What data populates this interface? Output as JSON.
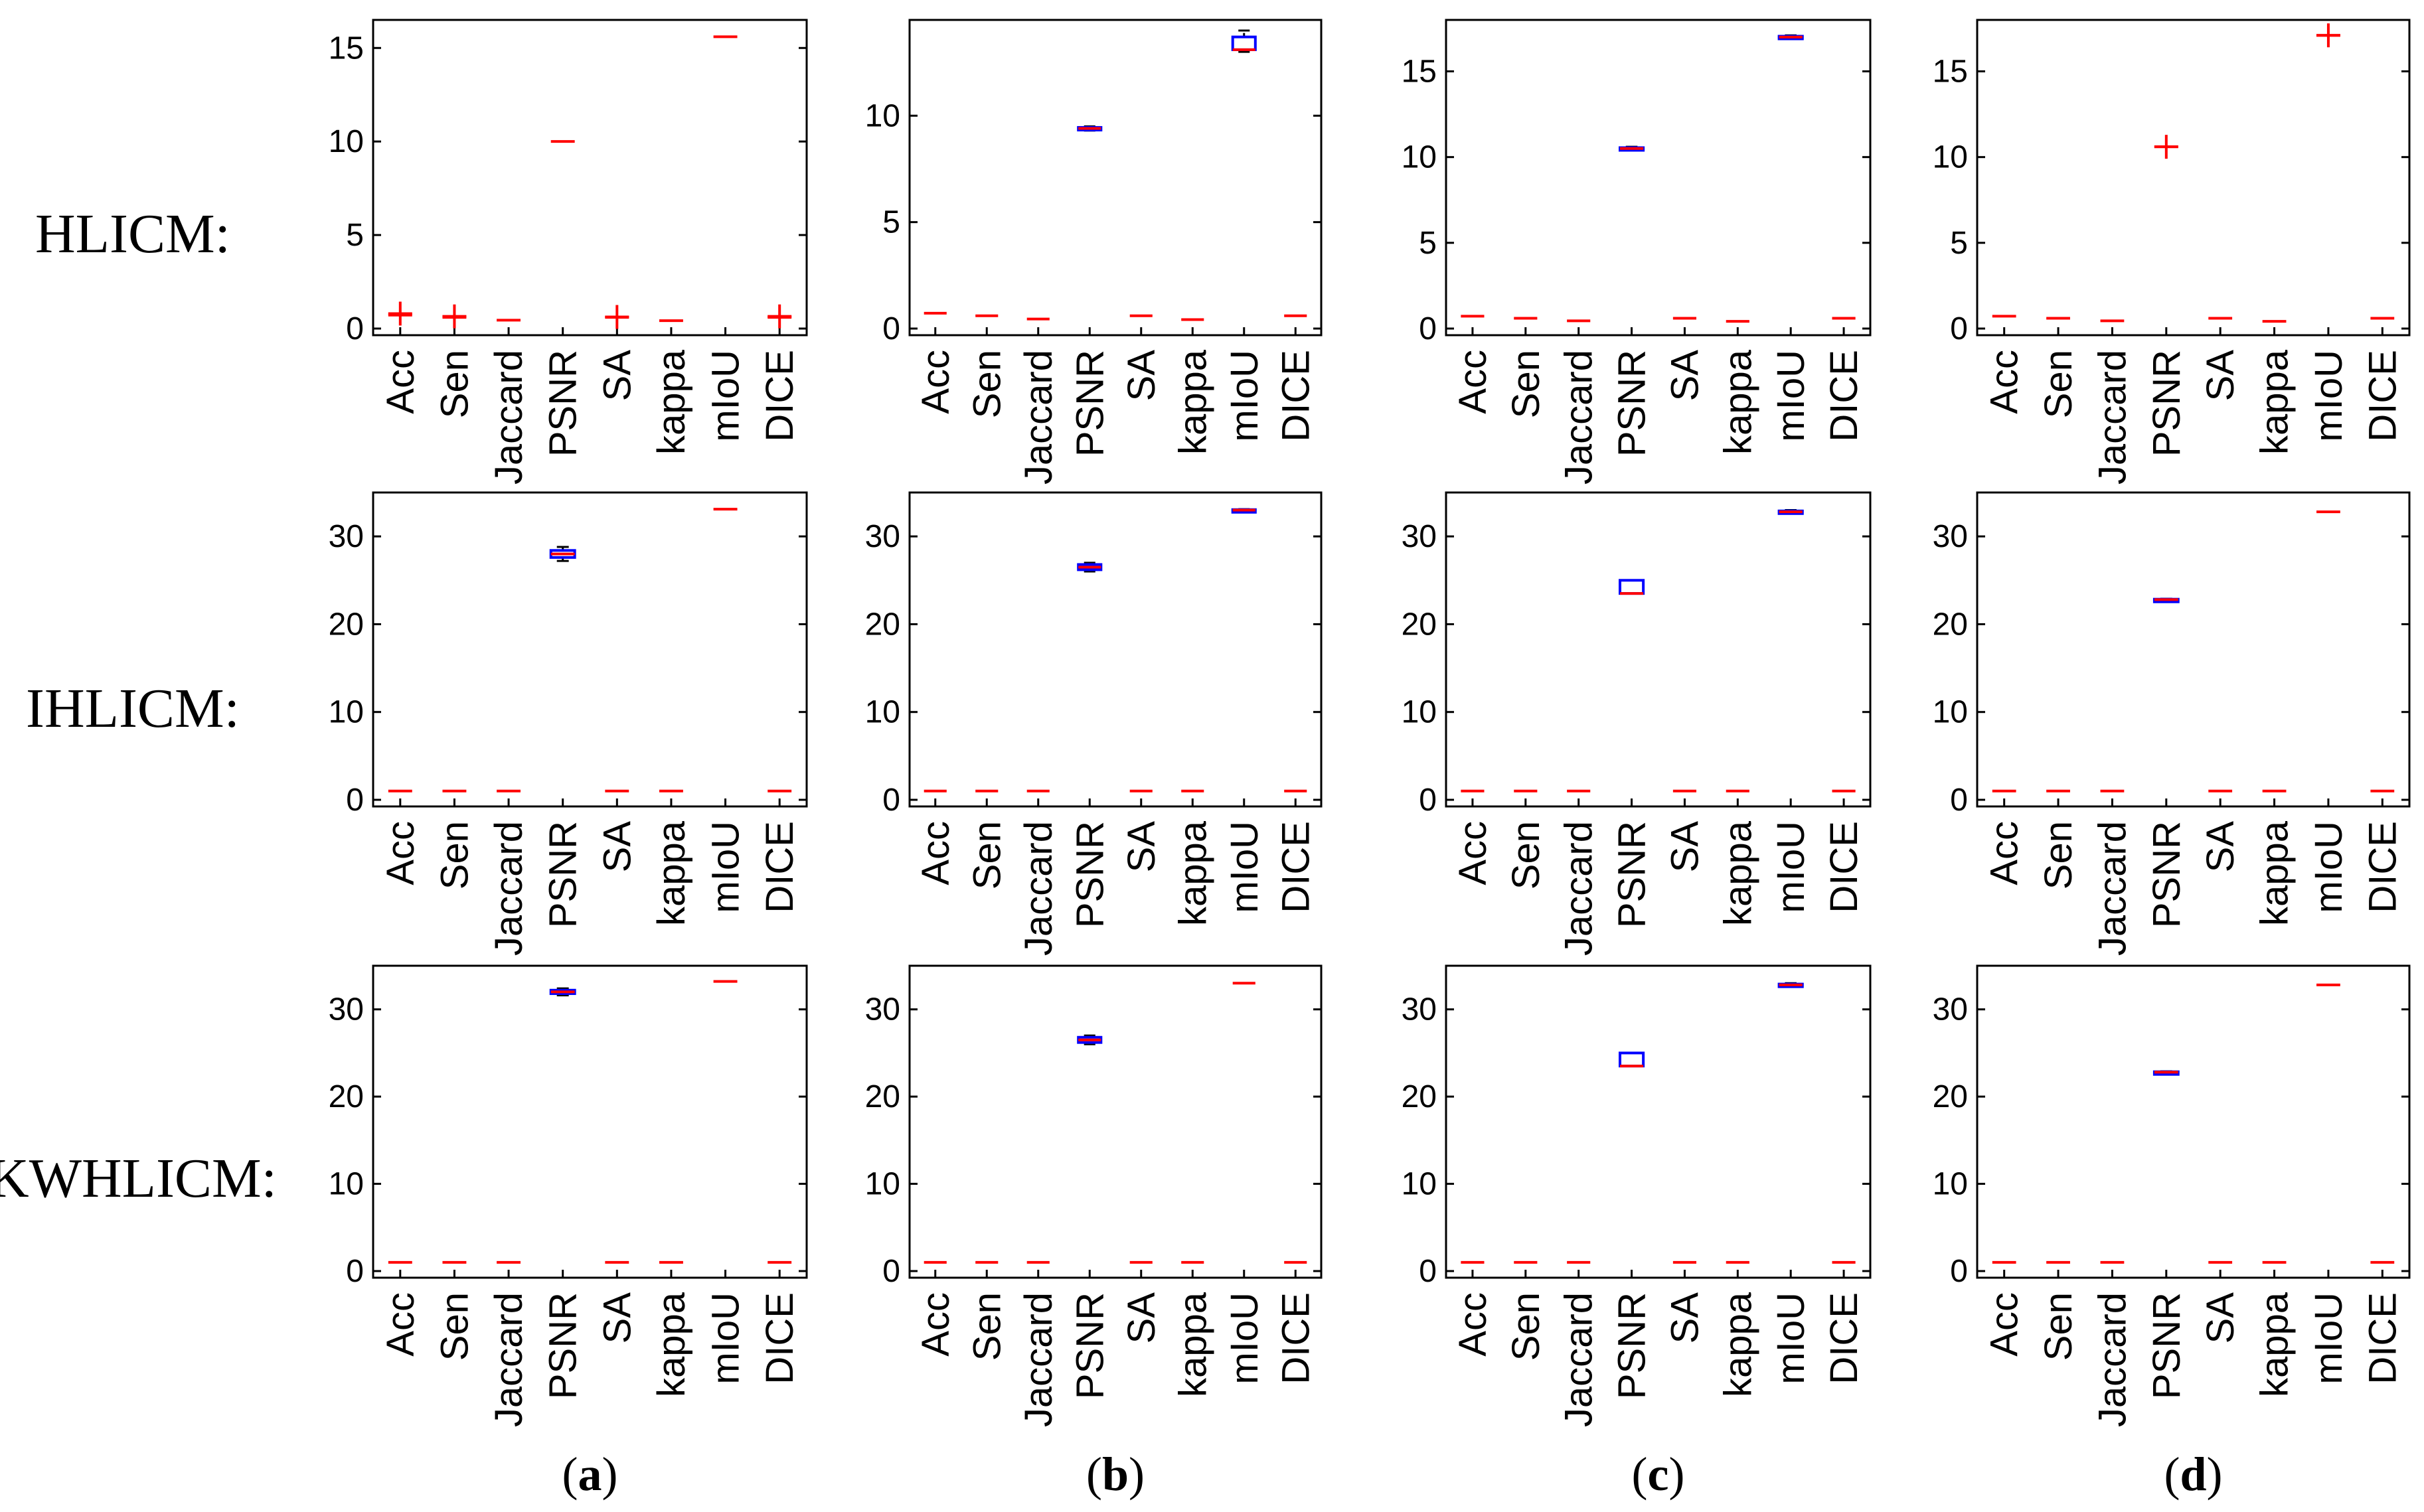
{
  "row_labels": [
    "HLICM:",
    "IHLICM:",
    "KWHLICM:"
  ],
  "panel_labels": [
    {
      "open": "(",
      "letter": "a",
      "close": ")"
    },
    {
      "open": "(",
      "letter": "b",
      "close": ")"
    },
    {
      "open": "(",
      "letter": "c",
      "close": ")"
    },
    {
      "open": "(",
      "letter": "d",
      "close": ")"
    }
  ],
  "colors": {
    "median": "#ff0000",
    "box": "#0000ff",
    "whisker": "#000000",
    "outlier": "#ff0000",
    "axes": "#000000"
  },
  "chart_data": [
    {
      "type": "box",
      "row": 0,
      "col": 0,
      "categories": [
        "Acc",
        "Sen",
        "Jaccard",
        "PSNR",
        "SA",
        "kappa",
        "mIoU",
        "DICE"
      ],
      "ylim": [
        0,
        16.5
      ],
      "yticks": [
        0,
        5,
        10,
        15
      ],
      "boxes": [
        {
          "median": 0.72,
          "outlier": 0.8
        },
        {
          "median": 0.6,
          "outlier": 0.65
        },
        {
          "median": 0.45
        },
        {
          "median": 10.0
        },
        {
          "median": 0.6,
          "outlier": 0.62
        },
        {
          "median": 0.42
        },
        {
          "median": 15.6
        },
        {
          "median": 0.6,
          "outlier": 0.65
        }
      ]
    },
    {
      "type": "box",
      "row": 0,
      "col": 1,
      "categories": [
        "Acc",
        "Sen",
        "Jaccard",
        "PSNR",
        "SA",
        "kappa",
        "mIoU",
        "DICE"
      ],
      "ylim": [
        0,
        14.5
      ],
      "yticks": [
        0,
        5,
        10
      ],
      "boxes": [
        {
          "median": 0.72
        },
        {
          "median": 0.6
        },
        {
          "median": 0.45
        },
        {
          "median": 9.4,
          "q1": 9.35,
          "q3": 9.45,
          "min": 9.3,
          "max": 9.5
        },
        {
          "median": 0.6
        },
        {
          "median": 0.42
        },
        {
          "median": 13.1,
          "q1": 13.1,
          "q3": 13.7,
          "min": 13.0,
          "max": 14.0
        },
        {
          "median": 0.6
        }
      ]
    },
    {
      "type": "box",
      "row": 0,
      "col": 2,
      "categories": [
        "Acc",
        "Sen",
        "Jaccard",
        "PSNR",
        "SA",
        "kappa",
        "mIoU",
        "DICE"
      ],
      "ylim": [
        0,
        18
      ],
      "yticks": [
        0,
        5,
        10,
        15
      ],
      "boxes": [
        {
          "median": 0.72
        },
        {
          "median": 0.6
        },
        {
          "median": 0.45
        },
        {
          "median": 10.5,
          "q1": 10.45,
          "q3": 10.55,
          "min": 10.4,
          "max": 10.6
        },
        {
          "median": 0.6
        },
        {
          "median": 0.42
        },
        {
          "median": 17.0,
          "q1": 16.95,
          "q3": 17.05,
          "min": 16.9,
          "max": 17.1
        },
        {
          "median": 0.6
        }
      ]
    },
    {
      "type": "box",
      "row": 0,
      "col": 3,
      "categories": [
        "Acc",
        "Sen",
        "Jaccard",
        "PSNR",
        "SA",
        "kappa",
        "mIoU",
        "DICE"
      ],
      "ylim": [
        0,
        18
      ],
      "yticks": [
        0,
        5,
        10,
        15
      ],
      "boxes": [
        {
          "median": 0.72
        },
        {
          "median": 0.6
        },
        {
          "median": 0.45
        },
        {
          "median": 10.6,
          "outlier": 10.6
        },
        {
          "median": 0.6
        },
        {
          "median": 0.42
        },
        {
          "median": 17.1,
          "outlier": 17.1
        },
        {
          "median": 0.6
        }
      ]
    },
    {
      "type": "box",
      "row": 1,
      "col": 0,
      "categories": [
        "Acc",
        "Sen",
        "Jaccard",
        "PSNR",
        "SA",
        "kappa",
        "mIoU",
        "DICE"
      ],
      "ylim": [
        0,
        35
      ],
      "yticks": [
        0,
        10,
        20,
        30
      ],
      "boxes": [
        {
          "median": 1
        },
        {
          "median": 1
        },
        {
          "median": 1
        },
        {
          "median": 28.0,
          "q1": 27.6,
          "q3": 28.4,
          "min": 27.2,
          "max": 28.8
        },
        {
          "median": 1
        },
        {
          "median": 1
        },
        {
          "median": 33.1
        },
        {
          "median": 1
        }
      ]
    },
    {
      "type": "box",
      "row": 1,
      "col": 1,
      "categories": [
        "Acc",
        "Sen",
        "Jaccard",
        "PSNR",
        "SA",
        "kappa",
        "mIoU",
        "DICE"
      ],
      "ylim": [
        0,
        35
      ],
      "yticks": [
        0,
        10,
        20,
        30
      ],
      "boxes": [
        {
          "median": 1
        },
        {
          "median": 1
        },
        {
          "median": 1
        },
        {
          "median": 26.5,
          "q1": 26.2,
          "q3": 26.8,
          "min": 26.0,
          "max": 27.0
        },
        {
          "median": 1
        },
        {
          "median": 1
        },
        {
          "median": 33.0,
          "q1": 32.95,
          "q3": 33.05,
          "min": 32.9,
          "max": 33.1
        },
        {
          "median": 1
        }
      ]
    },
    {
      "type": "box",
      "row": 1,
      "col": 2,
      "categories": [
        "Acc",
        "Sen",
        "Jaccard",
        "PSNR",
        "SA",
        "kappa",
        "mIoU",
        "DICE"
      ],
      "ylim": [
        0,
        35
      ],
      "yticks": [
        0,
        10,
        20,
        30
      ],
      "boxes": [
        {
          "median": 1
        },
        {
          "median": 1
        },
        {
          "median": 1
        },
        {
          "median": 23.5,
          "q1": 23.5,
          "q3": 25.0,
          "min": 23.5,
          "max": 25.0
        },
        {
          "median": 1
        },
        {
          "median": 1
        },
        {
          "median": 32.8,
          "q1": 32.7,
          "q3": 32.9,
          "min": 32.6,
          "max": 33.0
        },
        {
          "median": 1
        }
      ]
    },
    {
      "type": "box",
      "row": 1,
      "col": 3,
      "categories": [
        "Acc",
        "Sen",
        "Jaccard",
        "PSNR",
        "SA",
        "kappa",
        "mIoU",
        "DICE"
      ],
      "ylim": [
        0,
        35
      ],
      "yticks": [
        0,
        10,
        20,
        30
      ],
      "boxes": [
        {
          "median": 1
        },
        {
          "median": 1
        },
        {
          "median": 1
        },
        {
          "median": 22.8,
          "q1": 22.75,
          "q3": 22.85,
          "min": 22.7,
          "max": 22.9
        },
        {
          "median": 1
        },
        {
          "median": 1
        },
        {
          "median": 32.8
        },
        {
          "median": 1
        }
      ]
    },
    {
      "type": "box",
      "row": 2,
      "col": 0,
      "categories": [
        "Acc",
        "Sen",
        "Jaccard",
        "PSNR",
        "SA",
        "kappa",
        "mIoU",
        "DICE"
      ],
      "ylim": [
        0,
        35
      ],
      "yticks": [
        0,
        10,
        20,
        30
      ],
      "boxes": [
        {
          "median": 1
        },
        {
          "median": 1
        },
        {
          "median": 1
        },
        {
          "median": 32.0,
          "q1": 31.8,
          "q3": 32.2,
          "min": 31.6,
          "max": 32.4
        },
        {
          "median": 1
        },
        {
          "median": 1
        },
        {
          "median": 33.2
        },
        {
          "median": 1
        }
      ]
    },
    {
      "type": "box",
      "row": 2,
      "col": 1,
      "categories": [
        "Acc",
        "Sen",
        "Jaccard",
        "PSNR",
        "SA",
        "kappa",
        "mIoU",
        "DICE"
      ],
      "ylim": [
        0,
        35
      ],
      "yticks": [
        0,
        10,
        20,
        30
      ],
      "boxes": [
        {
          "median": 1
        },
        {
          "median": 1
        },
        {
          "median": 1
        },
        {
          "median": 26.5,
          "q1": 26.2,
          "q3": 26.8,
          "min": 26.0,
          "max": 27.0
        },
        {
          "median": 1
        },
        {
          "median": 1
        },
        {
          "median": 33.0
        },
        {
          "median": 1
        }
      ]
    },
    {
      "type": "box",
      "row": 2,
      "col": 2,
      "categories": [
        "Acc",
        "Sen",
        "Jaccard",
        "PSNR",
        "SA",
        "kappa",
        "mIoU",
        "DICE"
      ],
      "ylim": [
        0,
        35
      ],
      "yticks": [
        0,
        10,
        20,
        30
      ],
      "boxes": [
        {
          "median": 1
        },
        {
          "median": 1
        },
        {
          "median": 1
        },
        {
          "median": 23.5,
          "q1": 23.5,
          "q3": 25.0,
          "min": 23.5,
          "max": 25.0
        },
        {
          "median": 1
        },
        {
          "median": 1
        },
        {
          "median": 32.8,
          "q1": 32.7,
          "q3": 32.9,
          "min": 32.6,
          "max": 33.0
        },
        {
          "median": 1
        }
      ]
    },
    {
      "type": "box",
      "row": 2,
      "col": 3,
      "categories": [
        "Acc",
        "Sen",
        "Jaccard",
        "PSNR",
        "SA",
        "kappa",
        "mIoU",
        "DICE"
      ],
      "ylim": [
        0,
        35
      ],
      "yticks": [
        0,
        10,
        20,
        30
      ],
      "boxes": [
        {
          "median": 1
        },
        {
          "median": 1
        },
        {
          "median": 1
        },
        {
          "median": 22.8,
          "q1": 22.75,
          "q3": 22.85,
          "min": 22.7,
          "max": 22.9
        },
        {
          "median": 1
        },
        {
          "median": 1
        },
        {
          "median": 32.8
        },
        {
          "median": 1
        }
      ]
    }
  ]
}
